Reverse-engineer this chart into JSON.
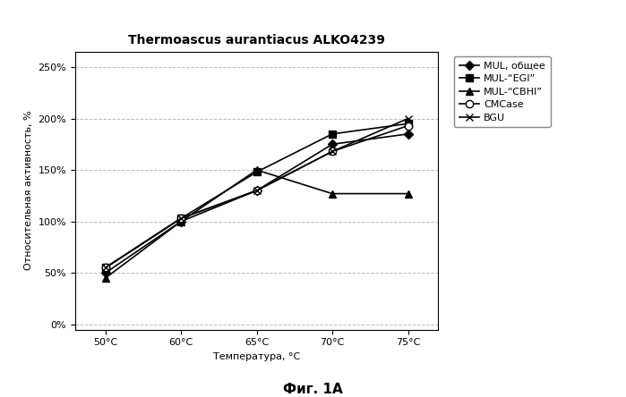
{
  "title": "Thermoascus aurantiacus ALKO4239",
  "xlabel": "Температура, °C",
  "ylabel": "Относительная активность, %",
  "caption": "Фиг. 1A",
  "x_tick_labels": [
    "50°C",
    "60°C",
    "65°C",
    "70°C",
    "75°C"
  ],
  "ytick_labels": [
    "0%",
    "50%",
    "100%",
    "150%",
    "200%",
    "250%"
  ],
  "ytick_vals": [
    0,
    50,
    100,
    150,
    200,
    250
  ],
  "ylim": [
    -5,
    265
  ],
  "series": [
    {
      "label": "MUL, общее",
      "y": [
        50,
        100,
        130,
        175,
        185
      ],
      "color": "#000000",
      "marker": "D",
      "markersize": 5,
      "linewidth": 1.2,
      "markerfacecolor": "#000000"
    },
    {
      "label": "MUL-“EGI”",
      "y": [
        55,
        103,
        148,
        185,
        195
      ],
      "color": "#000000",
      "marker": "s",
      "markersize": 6,
      "linewidth": 1.2,
      "markerfacecolor": "#000000"
    },
    {
      "label": "MUL-“CBHI”",
      "y": [
        45,
        100,
        150,
        127,
        127
      ],
      "color": "#000000",
      "marker": "^",
      "markersize": 6,
      "linewidth": 1.2,
      "markerfacecolor": "#000000"
    },
    {
      "label": "CMCase",
      "y": [
        55,
        103,
        130,
        168,
        193
      ],
      "color": "#000000",
      "marker": "o",
      "markersize": 6,
      "linewidth": 1.2,
      "markerfacecolor": "#ffffff"
    },
    {
      "label": "BGU",
      "y": [
        55,
        103,
        130,
        168,
        200
      ],
      "color": "#000000",
      "marker": "x",
      "markersize": 6,
      "linewidth": 1.2,
      "markerfacecolor": "#000000"
    }
  ],
  "background_color": "#ffffff",
  "grid_color": "#bbbbbb",
  "title_fontsize": 10,
  "axis_label_fontsize": 8,
  "tick_fontsize": 8,
  "legend_fontsize": 8,
  "caption_fontsize": 11
}
